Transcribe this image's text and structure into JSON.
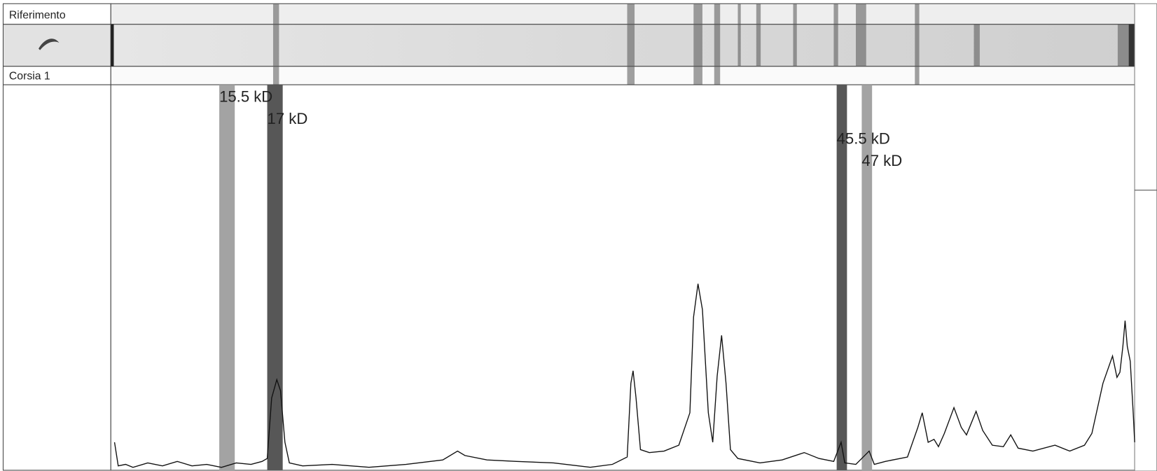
{
  "header": {
    "reference_label": "Riferimento",
    "lane_label": "Corsia 1"
  },
  "markers": [
    {
      "label": "15.5 kD"
    },
    {
      "label": "17 kD"
    },
    {
      "label": "45.5 kD"
    },
    {
      "label": "47 kD"
    }
  ]
}
